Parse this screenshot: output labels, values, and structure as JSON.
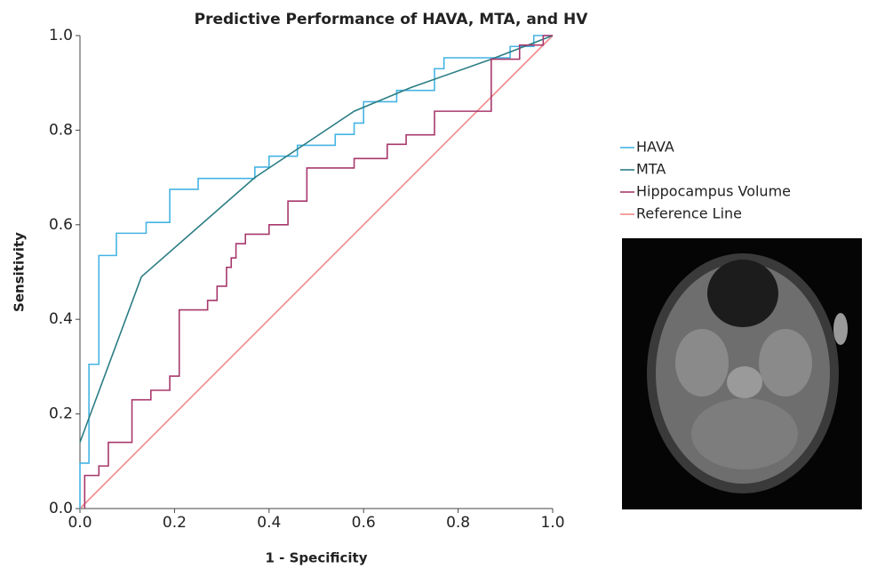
{
  "chart_data": {
    "type": "line",
    "title": "Predictive Performance of HAVA, MTA, and HV",
    "x_label": "1 - Specificity",
    "y_label": "Sensitivity",
    "xlim": [
      0,
      1
    ],
    "ylim": [
      0,
      1
    ],
    "xticks": [
      {
        "value": 0,
        "label": "0.0"
      },
      {
        "value": 0.2,
        "label": "0.2"
      },
      {
        "value": 0.4,
        "label": "0.4"
      },
      {
        "value": 0.6,
        "label": "0.6"
      },
      {
        "value": 0.8,
        "label": "0.8"
      },
      {
        "value": 1,
        "label": "1.0"
      }
    ],
    "yticks": [
      {
        "value": 0,
        "label": "0.0"
      },
      {
        "value": 0.2,
        "label": "0.2"
      },
      {
        "value": 0.4,
        "label": "0.4"
      },
      {
        "value": 0.6,
        "label": "0.6"
      },
      {
        "value": 0.8,
        "label": "0.8"
      },
      {
        "value": 1,
        "label": "1.0"
      }
    ],
    "grid": false,
    "legend": "right",
    "series": [
      {
        "name": "HAVA",
        "color": "#45b4e4",
        "x": [
          0,
          0,
          0.019,
          0.019,
          0.04,
          0.04,
          0.077,
          0.077,
          0.14,
          0.14,
          0.19,
          0.19,
          0.25,
          0.25,
          0.37,
          0.37,
          0.4,
          0.4,
          0.46,
          0.46,
          0.54,
          0.54,
          0.58,
          0.58,
          0.6,
          0.6,
          0.67,
          0.67,
          0.75,
          0.75,
          0.77,
          0.77,
          0.91,
          0.91,
          0.96,
          0.96,
          1
        ],
        "values": [
          0,
          0.096,
          0.096,
          0.305,
          0.305,
          0.535,
          0.535,
          0.582,
          0.582,
          0.605,
          0.605,
          0.675,
          0.675,
          0.698,
          0.698,
          0.722,
          0.722,
          0.745,
          0.745,
          0.768,
          0.768,
          0.791,
          0.791,
          0.815,
          0.815,
          0.86,
          0.86,
          0.884,
          0.884,
          0.93,
          0.93,
          0.953,
          0.953,
          0.977,
          0.977,
          1,
          1
        ]
      },
      {
        "name": "MTA",
        "color": "#2b7d83",
        "x": [
          0,
          0.13,
          0.37,
          0.58,
          0.7,
          0.87,
          1
        ],
        "values": [
          0.14,
          0.49,
          0.7,
          0.84,
          0.89,
          0.95,
          1
        ]
      },
      {
        "name": "Hippocampus Volume",
        "color": "#a8386c",
        "x": [
          0.01,
          0.01,
          0.04,
          0.04,
          0.06,
          0.06,
          0.11,
          0.11,
          0.15,
          0.15,
          0.19,
          0.19,
          0.21,
          0.21,
          0.27,
          0.27,
          0.29,
          0.29,
          0.31,
          0.31,
          0.32,
          0.32,
          0.33,
          0.33,
          0.35,
          0.35,
          0.4,
          0.4,
          0.44,
          0.44,
          0.48,
          0.48,
          0.58,
          0.58,
          0.65,
          0.65,
          0.69,
          0.69,
          0.75,
          0.75,
          0.87,
          0.87,
          0.93,
          0.93,
          0.98,
          0.98,
          1
        ],
        "values": [
          0,
          0.07,
          0.07,
          0.09,
          0.09,
          0.14,
          0.14,
          0.23,
          0.23,
          0.25,
          0.25,
          0.28,
          0.28,
          0.42,
          0.42,
          0.44,
          0.44,
          0.47,
          0.47,
          0.51,
          0.51,
          0.53,
          0.53,
          0.56,
          0.56,
          0.58,
          0.58,
          0.6,
          0.6,
          0.65,
          0.65,
          0.72,
          0.72,
          0.74,
          0.74,
          0.77,
          0.77,
          0.79,
          0.79,
          0.84,
          0.84,
          0.95,
          0.95,
          0.98,
          0.98,
          1,
          1
        ]
      },
      {
        "name": "Reference Line",
        "color": "#f08a8a",
        "x": [
          0,
          1
        ],
        "values": [
          0,
          1
        ]
      }
    ]
  }
}
